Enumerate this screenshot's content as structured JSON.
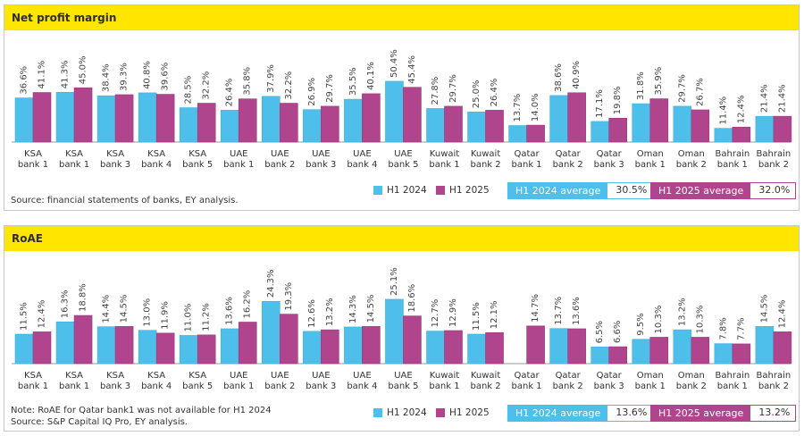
{
  "colors": {
    "h1_2024": "#4ebeea",
    "h1_2025": "#b0458e",
    "header": "#ffe600"
  },
  "legend": {
    "h1_2024": "H1 2024",
    "h1_2025": "H1 2025"
  },
  "chart_data": [
    {
      "type": "bar",
      "title": "Net profit margin",
      "categories": [
        "KSA bank 1",
        "KSA bank 1",
        "KSA bank 3",
        "KSA bank 4",
        "KSA bank 5",
        "UAE bank 1",
        "UAE bank 2",
        "UAE bank 3",
        "UAE bank 4",
        "UAE bank 5",
        "Kuwait bank 1",
        "Kuwait bank 2",
        "Qatar bank 1",
        "Qatar bank 2",
        "Qatar bank 3",
        "Oman bank 1",
        "Oman bank 2",
        "Bahrain bank 1",
        "Bahrain bank 2"
      ],
      "series": [
        {
          "name": "H1 2024",
          "values": [
            36.6,
            41.3,
            38.4,
            40.8,
            28.5,
            26.4,
            37.9,
            26.9,
            35.5,
            50.4,
            27.8,
            25.0,
            13.7,
            38.6,
            17.1,
            31.8,
            29.7,
            11.4,
            21.4
          ]
        },
        {
          "name": "H1 2025",
          "values": [
            41.1,
            45.0,
            39.3,
            39.6,
            32.2,
            35.8,
            32.2,
            29.7,
            40.1,
            45.4,
            29.7,
            26.4,
            14.0,
            40.9,
            19.8,
            35.9,
            26.7,
            12.4,
            21.4
          ]
        }
      ],
      "averages": {
        "h1_2024_label": "H1 2024 average",
        "h1_2024_value": "30.5%",
        "h1_2025_label": "H1 2025 average",
        "h1_2025_value": "32.0%"
      },
      "notes": [
        "Source: financial statements of banks, EY analysis."
      ],
      "unit": "%",
      "grid": false,
      "legend": "bottom-right"
    },
    {
      "type": "bar",
      "title": "RoAE",
      "categories": [
        "KSA bank 1",
        "KSA bank 1",
        "KSA bank 3",
        "KSA bank 4",
        "KSA bank 5",
        "UAE bank 1",
        "UAE bank 2",
        "UAE bank 3",
        "UAE bank 4",
        "UAE bank 5",
        "Kuwait bank 1",
        "Kuwait bank 2",
        "Qatar bank 1",
        "Qatar bank 2",
        "Qatar bank 3",
        "Oman bank 1",
        "Oman bank 2",
        "Bahrain bank 1",
        "Bahrain bank 2"
      ],
      "series": [
        {
          "name": "H1 2024",
          "values": [
            11.5,
            16.3,
            14.4,
            13.0,
            11.0,
            13.6,
            24.3,
            12.6,
            14.3,
            25.1,
            12.7,
            11.5,
            null,
            13.7,
            6.5,
            9.5,
            13.2,
            7.8,
            14.5
          ]
        },
        {
          "name": "H1 2025",
          "values": [
            12.4,
            18.8,
            14.5,
            11.9,
            11.2,
            16.2,
            19.3,
            13.2,
            14.5,
            18.6,
            12.9,
            12.1,
            14.7,
            13.6,
            6.6,
            10.3,
            10.3,
            7.7,
            12.4
          ]
        }
      ],
      "averages": {
        "h1_2024_label": "H1 2024 average",
        "h1_2024_value": "13.6%",
        "h1_2025_label": "H1 2025 average",
        "h1_2025_value": "13.2%"
      },
      "notes": [
        "Note: RoAE for Qatar bank1 was not available for H1 2024",
        "Source: S&P Capital IQ Pro, EY analysis."
      ],
      "unit": "%",
      "grid": false,
      "legend": "bottom-right"
    }
  ]
}
